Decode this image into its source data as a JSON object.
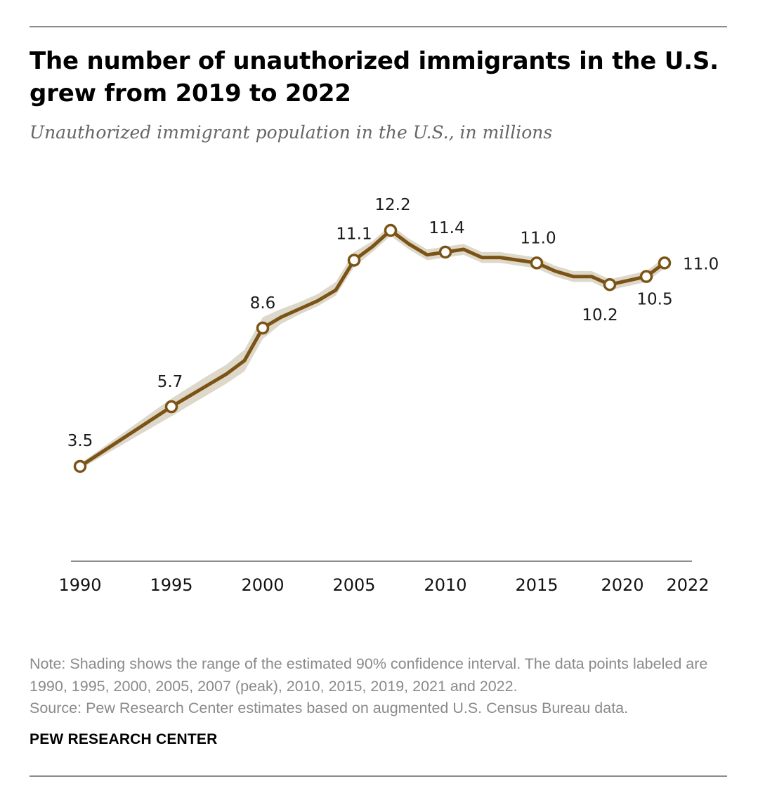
{
  "header": {
    "title": "The number of unauthorized immigrants in the U.S. grew from 2019 to 2022",
    "subtitle": "Unauthorized immigrant population in the U.S., in millions"
  },
  "footer": {
    "note": "Note: Shading shows the range of the estimated 90% confidence interval. The data points labeled are 1990, 1995, 2000, 2005, 2007 (peak), 2010, 2015, 2019, 2021 and 2022.",
    "source": "Source: Pew Research Center estimates based on augmented U.S. Census Bureau data.",
    "brand": "PEW RESEARCH CENTER"
  },
  "colors": {
    "line": "#7b5415",
    "band": "#ddd8c9",
    "axis": "#8c8c8c",
    "marker_fill": "#ffffff"
  },
  "chart_data": {
    "type": "line",
    "title": "The number of unauthorized immigrants in the U.S. grew from 2019 to 2022",
    "subtitle": "Unauthorized immigrant population in the U.S., in millions",
    "xlabel": "",
    "ylabel": "",
    "x_ticks": [
      "1990",
      "1995",
      "2000",
      "2005",
      "2010",
      "2015",
      "2020",
      "2022"
    ],
    "series": [
      {
        "x": [
          1990,
          1995,
          1997,
          1998,
          1999,
          2000,
          2001,
          2002,
          2003,
          2004,
          2005,
          2006,
          2007,
          2008,
          2009,
          2010,
          2011,
          2012,
          2013,
          2014,
          2015,
          2016,
          2017,
          2018,
          2019,
          2020,
          2021,
          2022
        ],
        "y": [
          3.5,
          5.7,
          6.5,
          6.9,
          7.4,
          8.6,
          9.0,
          9.3,
          9.6,
          10.0,
          11.1,
          11.6,
          12.2,
          11.7,
          11.3,
          11.4,
          11.5,
          11.2,
          11.2,
          11.1,
          11.0,
          10.7,
          10.5,
          10.5,
          10.2,
          10.35,
          10.5,
          11.0
        ],
        "ci_low": [
          3.4,
          5.35,
          6.15,
          6.55,
          7.0,
          8.2,
          8.75,
          9.1,
          9.4,
          9.8,
          10.85,
          11.4,
          12.0,
          11.5,
          11.1,
          11.2,
          11.3,
          11.0,
          11.0,
          10.9,
          10.8,
          10.5,
          10.3,
          10.3,
          10.0,
          10.15,
          10.3,
          10.8
        ],
        "ci_high": [
          3.6,
          6.0,
          6.85,
          7.25,
          7.8,
          9.0,
          9.3,
          9.55,
          9.85,
          10.3,
          11.4,
          11.8,
          12.4,
          11.9,
          11.5,
          11.6,
          11.7,
          11.4,
          11.4,
          11.3,
          11.2,
          10.9,
          10.7,
          10.7,
          10.4,
          10.55,
          10.7,
          11.2
        ],
        "labeled_points": [
          {
            "x": 1990,
            "y": 3.5,
            "label": "3.5"
          },
          {
            "x": 1995,
            "y": 5.7,
            "label": "5.7"
          },
          {
            "x": 2000,
            "y": 8.6,
            "label": "8.6"
          },
          {
            "x": 2005,
            "y": 11.1,
            "label": "11.1"
          },
          {
            "x": 2007,
            "y": 12.2,
            "label": "12.2"
          },
          {
            "x": 2010,
            "y": 11.4,
            "label": "11.4"
          },
          {
            "x": 2015,
            "y": 11.0,
            "label": "11.0"
          },
          {
            "x": 2019,
            "y": 10.2,
            "label": "10.2"
          },
          {
            "x": 2021,
            "y": 10.5,
            "label": "10.5"
          },
          {
            "x": 2022,
            "y": 11.0,
            "label": "11.0"
          }
        ]
      }
    ],
    "xlim": [
      1990,
      2022
    ],
    "ylim": [
      0,
      12.2
    ],
    "grid": false,
    "legend": "none"
  }
}
